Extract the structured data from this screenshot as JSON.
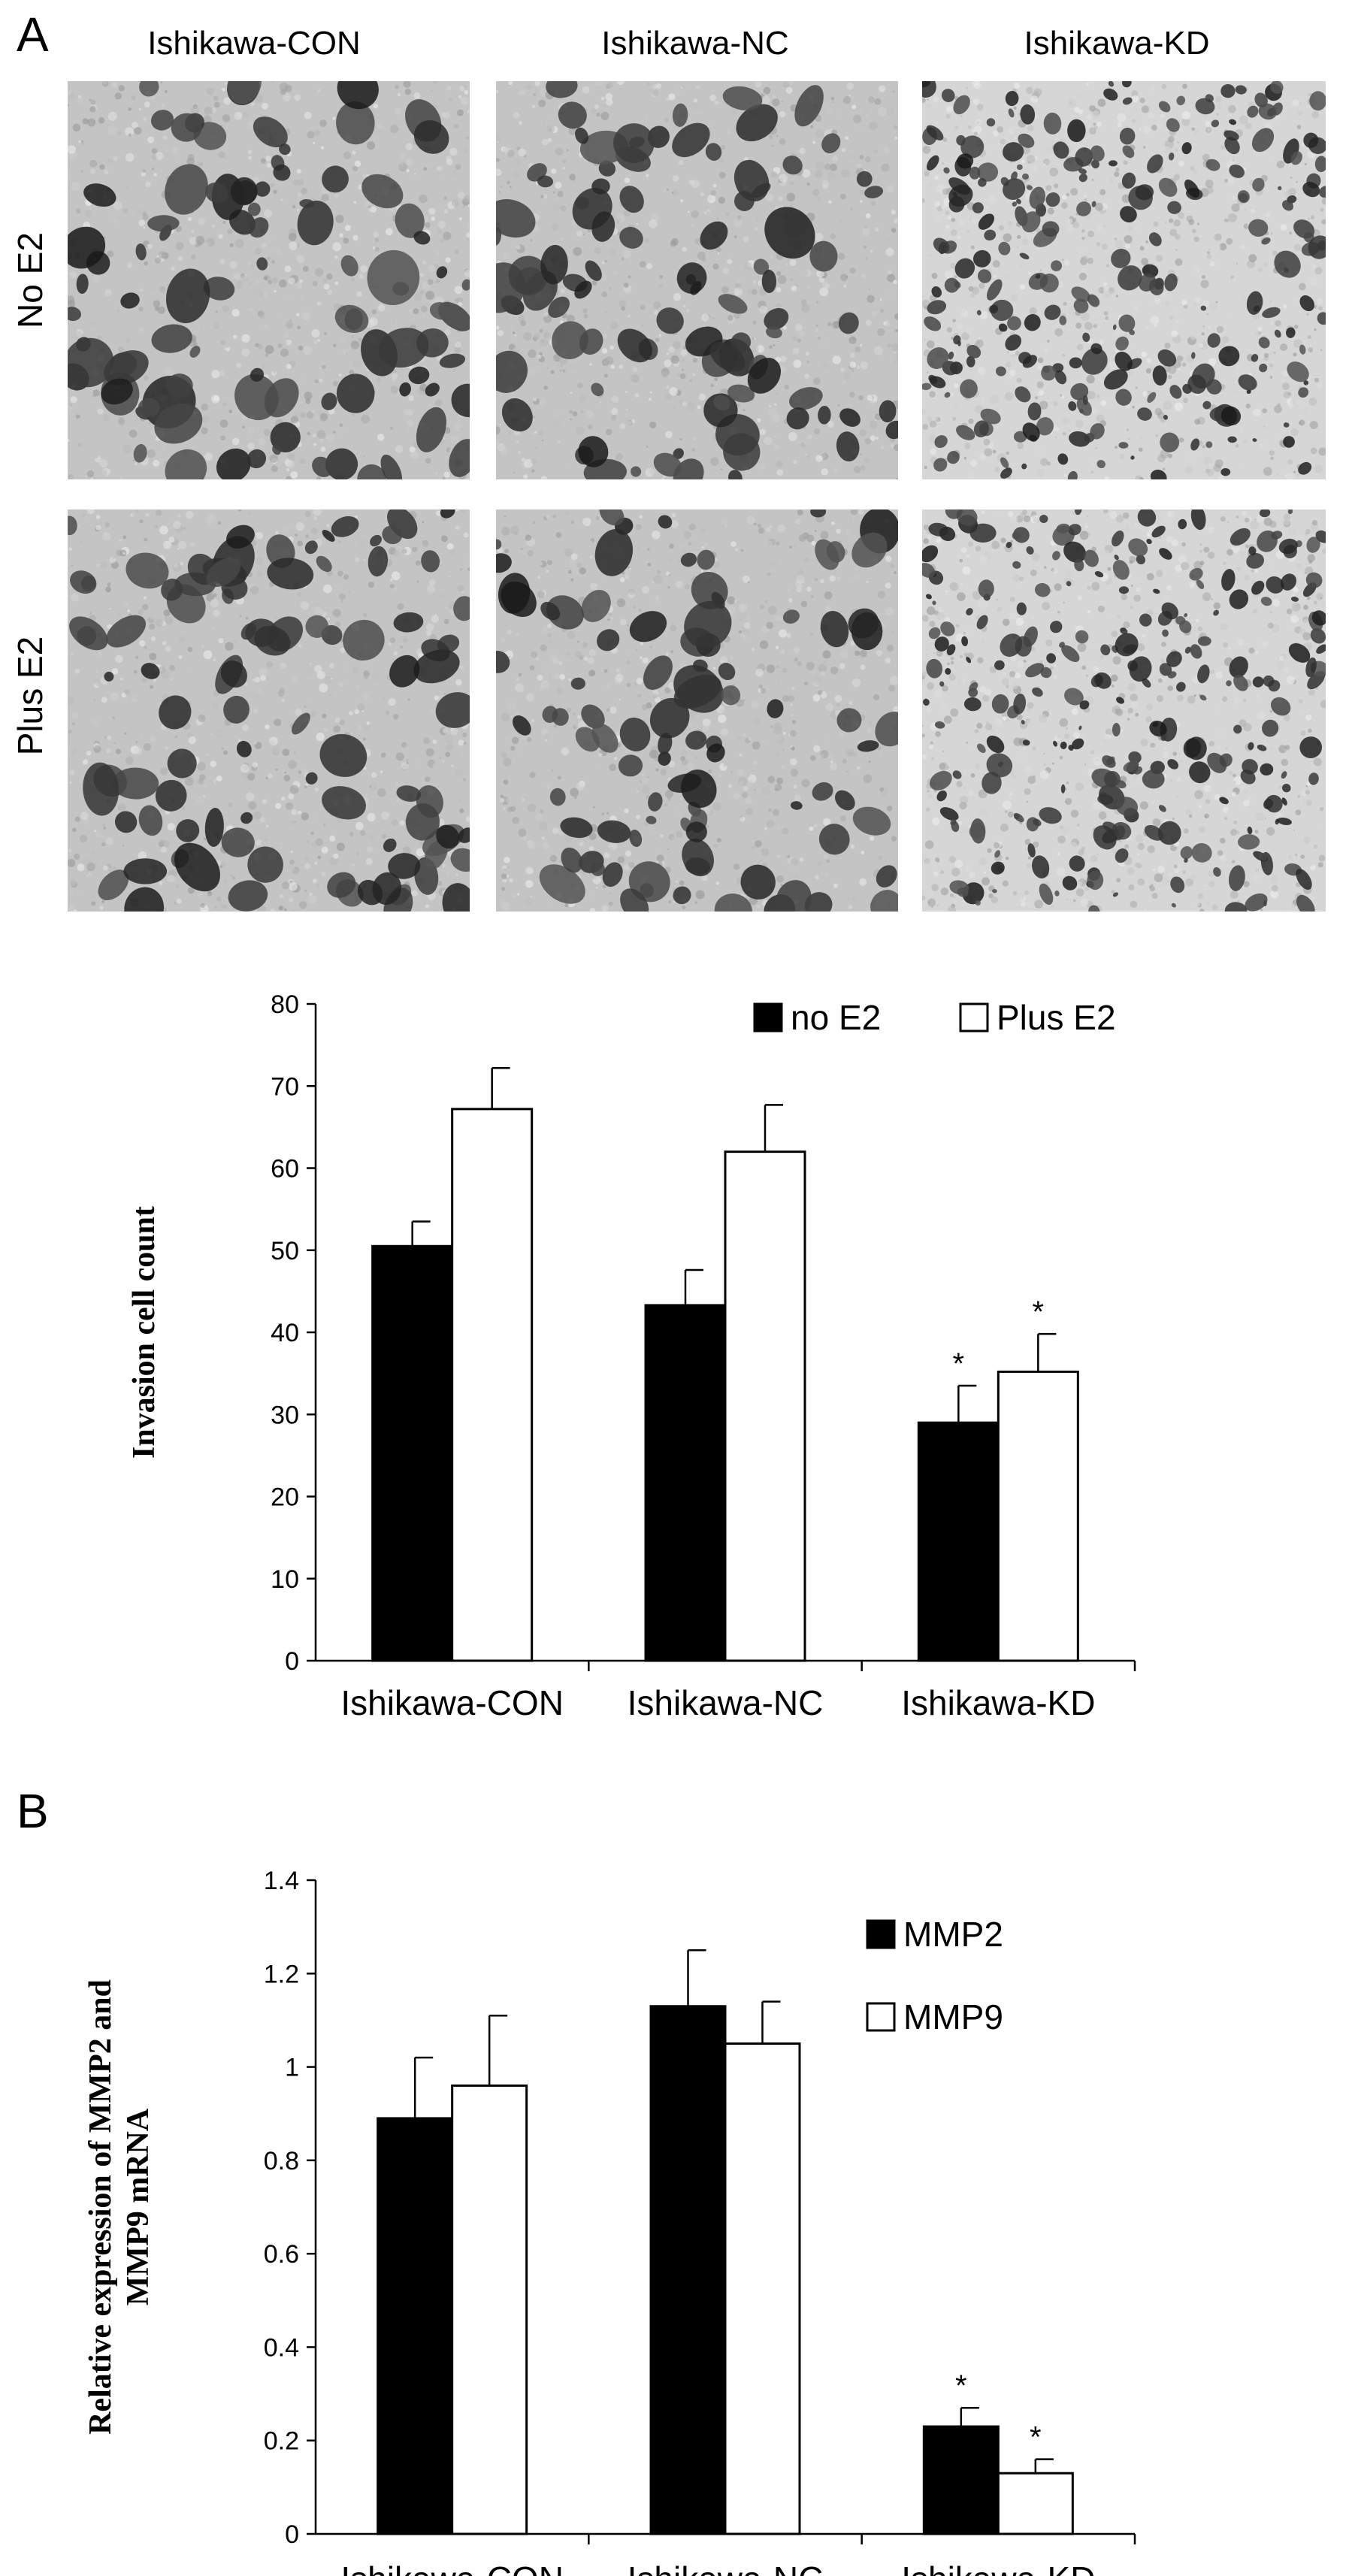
{
  "panel_a": {
    "letter": "A",
    "columns": [
      "Ishikawa-CON",
      "Ishikawa-NC",
      "Ishikawa-KD"
    ],
    "rows": [
      "No E2",
      "Plus E2"
    ]
  },
  "panel_b": {
    "letter": "B"
  },
  "chart_data": [
    {
      "type": "bar",
      "categories": [
        "Ishikawa-CON",
        "Ishikawa-NC",
        "Ishikawa-KD"
      ],
      "series": [
        {
          "name": "no E2",
          "values": [
            50.5,
            43.3,
            29.0
          ],
          "errors": [
            3.0,
            4.3,
            4.5
          ],
          "color": "#000000"
        },
        {
          "name": "Plus E2",
          "values": [
            67.2,
            62.0,
            35.2
          ],
          "errors": [
            5.0,
            5.7,
            4.6
          ],
          "color": "#ffffff"
        }
      ],
      "significance": [
        [
          false,
          false,
          true
        ],
        [
          false,
          false,
          true
        ]
      ],
      "significance_marker": "*",
      "ylabel": "Invasion cell count",
      "yticks": [
        "0",
        "10",
        "20",
        "30",
        "40",
        "50",
        "60",
        "70",
        "80"
      ],
      "ylim": [
        0,
        80
      ],
      "legend_position": "top-right",
      "grid": false
    },
    {
      "type": "bar",
      "categories": [
        "Ishikawa-CON",
        "Ishikawa-NC",
        "Ishikawa-KD"
      ],
      "series": [
        {
          "name": "MMP2",
          "values": [
            0.89,
            1.13,
            0.23
          ],
          "errors": [
            0.13,
            0.12,
            0.04
          ],
          "color": "#000000"
        },
        {
          "name": "MMP9",
          "values": [
            0.96,
            1.05,
            0.13
          ],
          "errors": [
            0.15,
            0.09,
            0.03
          ],
          "color": "#ffffff"
        }
      ],
      "significance": [
        [
          false,
          false,
          true
        ],
        [
          false,
          false,
          true
        ]
      ],
      "significance_marker": "*",
      "ylabel": [
        "Relative expression of MMP2 and",
        "MMP9 mRNA"
      ],
      "yticks": [
        "0",
        "0.2",
        "0.4",
        "0.6",
        "0.8",
        "1",
        "1.2",
        "1.4"
      ],
      "ylim": [
        0,
        1.4
      ],
      "legend_position": "top-right",
      "grid": false
    }
  ]
}
